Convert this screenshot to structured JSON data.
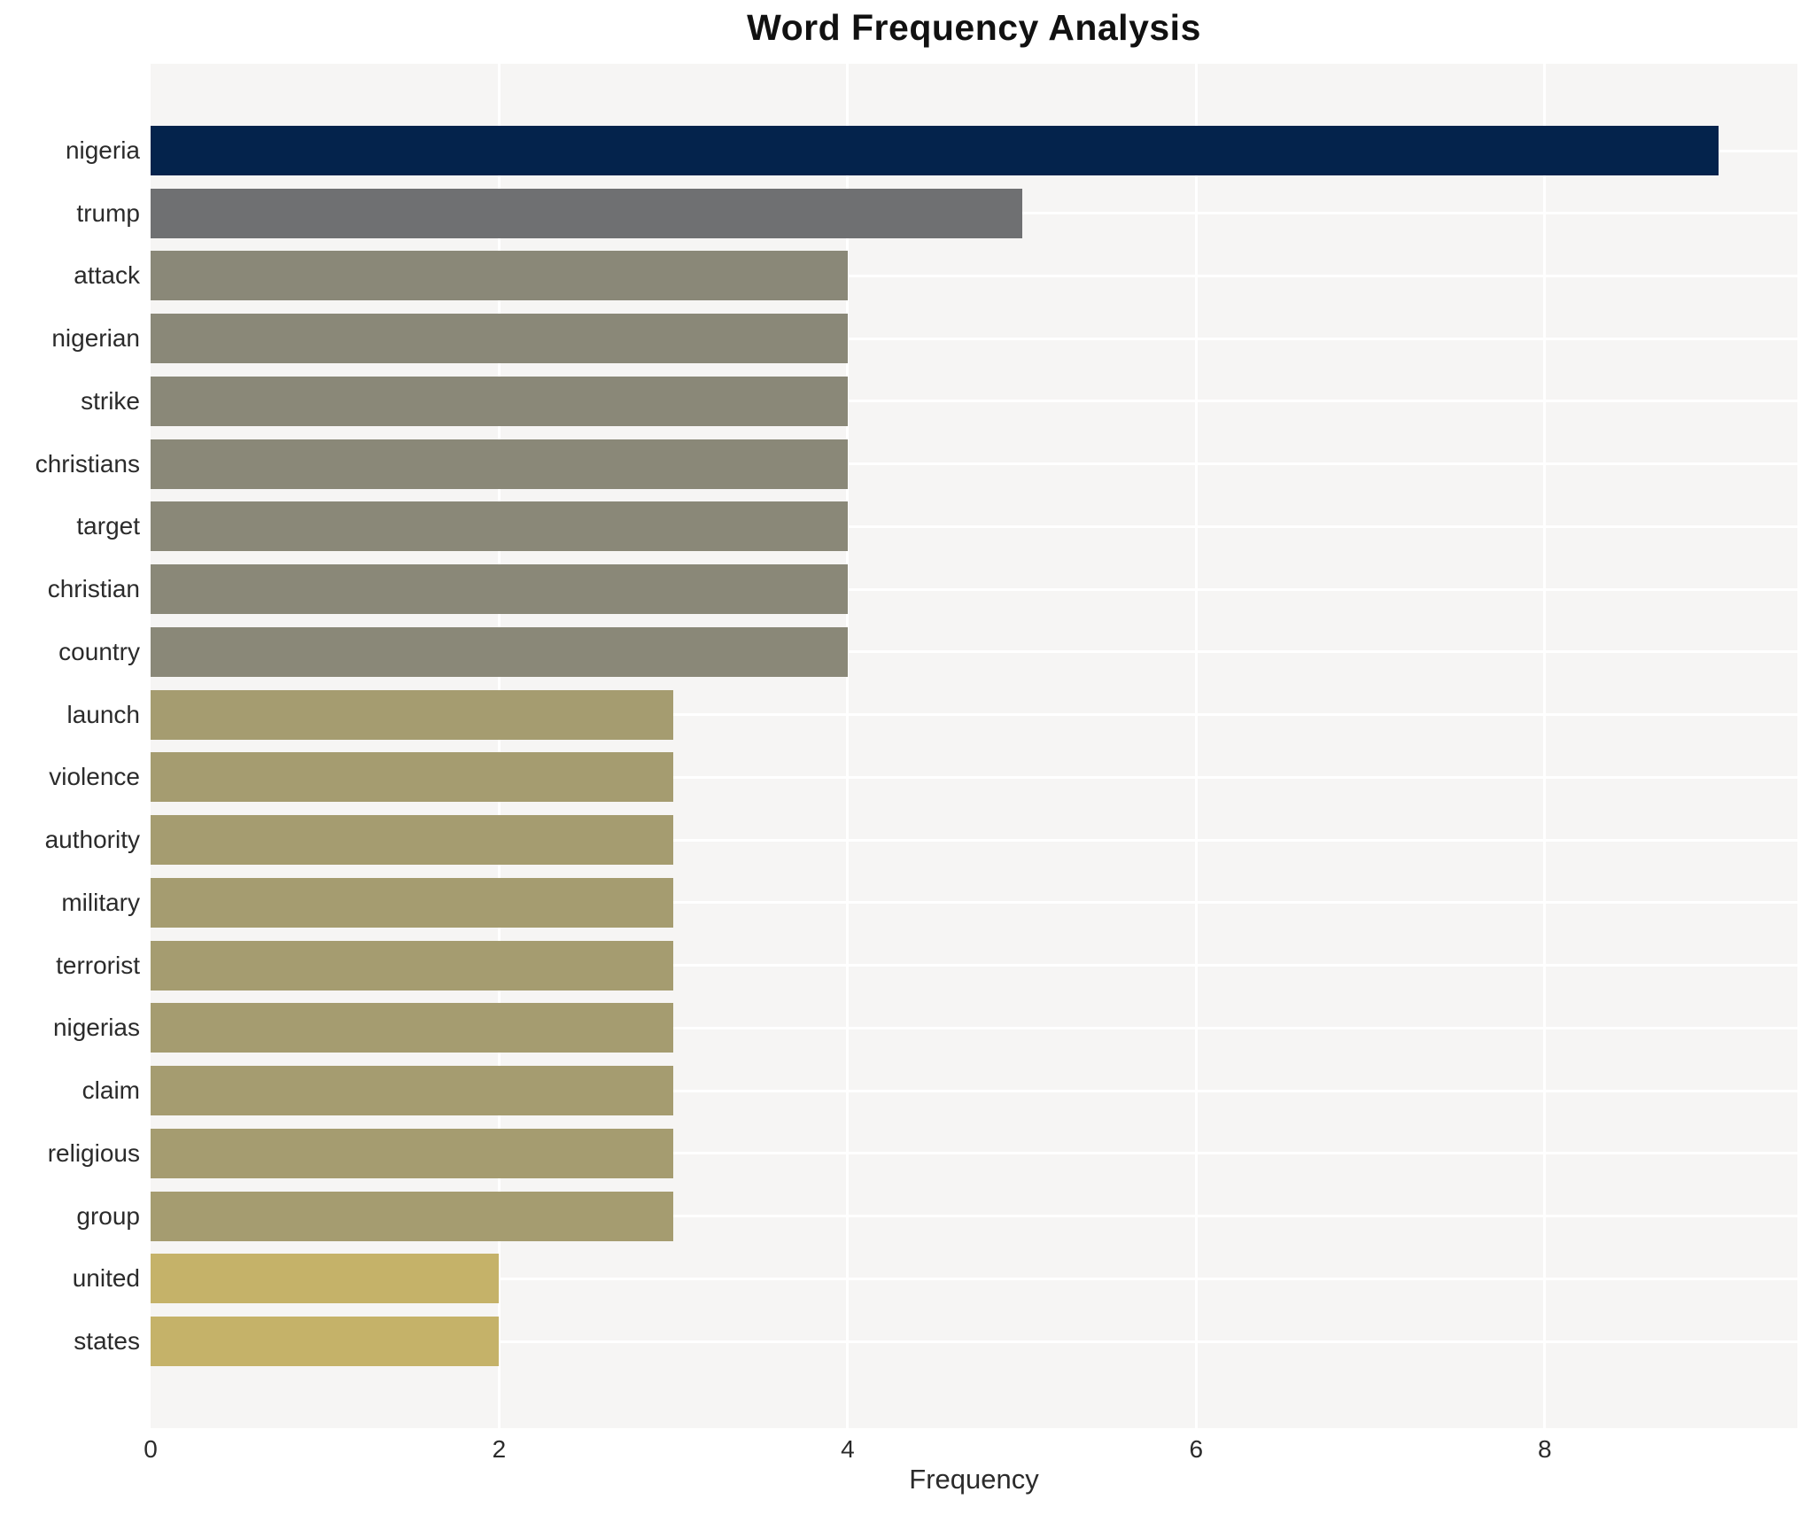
{
  "chart_data": {
    "type": "bar",
    "orientation": "horizontal",
    "title": "Word Frequency Analysis",
    "xlabel": "Frequency",
    "ylabel": "",
    "categories": [
      "nigeria",
      "trump",
      "attack",
      "nigerian",
      "strike",
      "christians",
      "target",
      "christian",
      "country",
      "launch",
      "violence",
      "authority",
      "military",
      "terrorist",
      "nigerias",
      "claim",
      "religious",
      "group",
      "united",
      "states"
    ],
    "values": [
      9,
      5,
      4,
      4,
      4,
      4,
      4,
      4,
      4,
      3,
      3,
      3,
      3,
      3,
      3,
      3,
      3,
      3,
      2,
      2
    ],
    "bar_colors": [
      "#04234c",
      "#6f7072",
      "#8a8878",
      "#8a8878",
      "#8a8878",
      "#8a8878",
      "#8a8878",
      "#8a8878",
      "#8a8878",
      "#a59c70",
      "#a59c70",
      "#a59c70",
      "#a59c70",
      "#a59c70",
      "#a59c70",
      "#a59c70",
      "#a59c70",
      "#a59c70",
      "#c5b269",
      "#c5b269"
    ],
    "xticks": [
      0,
      2,
      4,
      6,
      8
    ],
    "xlim": [
      0,
      9.45
    ],
    "grid": true,
    "legend": "none",
    "panel_background": "#f6f5f4",
    "grid_color": "#ffffff",
    "title_color": "#111111",
    "axis_text_color": "#2b2b2b"
  }
}
